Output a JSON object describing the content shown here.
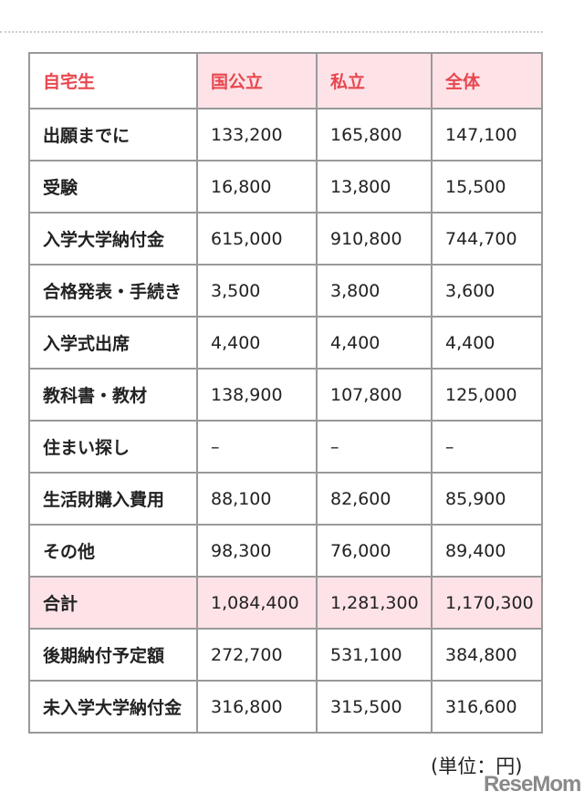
{
  "header": [
    "自宅生",
    "国公立",
    "私立",
    "全体"
  ],
  "rows": [
    [
      "出願までに",
      "133,200",
      "165,800",
      "147,100"
    ],
    [
      "受験",
      "16,800",
      "13,800",
      "15,500"
    ],
    [
      "入学大学納付金",
      "615,000",
      "910,800",
      "744,700"
    ],
    [
      "合格発表・手続き",
      "3,500",
      "3,800",
      "3,600"
    ],
    [
      "入学式出席",
      "4,400",
      "4,400",
      "4,400"
    ],
    [
      "教科書・教材",
      "138,900",
      "107,800",
      "125,000"
    ],
    [
      "住まい探し",
      "–",
      "–",
      "–"
    ],
    [
      "生活財購入費用",
      "88,100",
      "82,600",
      "85,900"
    ],
    [
      "その他",
      "98,300",
      "76,000",
      "89,400"
    ],
    [
      "合計",
      "1,084,400",
      "1,281,300",
      "1,170,300"
    ],
    [
      "後期納付予定額",
      "272,700",
      "531,100",
      "384,800"
    ],
    [
      "未入学大学納付金",
      "316,800",
      "315,500",
      "316,600"
    ]
  ],
  "unit": "(単位：円)",
  "logo": "ReseMom",
  "colors": {
    "accent": "#e8474f",
    "highlight": "#fde3e8"
  }
}
